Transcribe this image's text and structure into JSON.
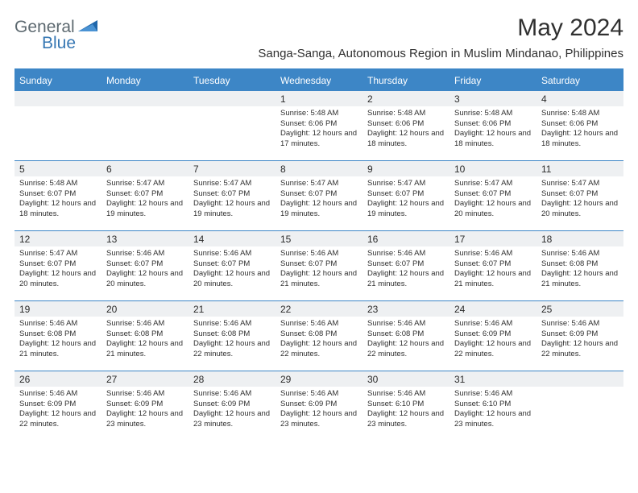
{
  "brand": {
    "word1": "General",
    "word2": "Blue"
  },
  "title": "May 2024",
  "subtitle": "Sanga-Sanga, Autonomous Region in Muslim Mindanao, Philippines",
  "colors": {
    "header_bg": "#3d86c6",
    "header_text": "#ffffff",
    "daynum_bg": "#eef0f2",
    "text": "#303030",
    "brand_gray": "#5d6970",
    "brand_blue": "#3677b3"
  },
  "day_names": [
    "Sunday",
    "Monday",
    "Tuesday",
    "Wednesday",
    "Thursday",
    "Friday",
    "Saturday"
  ],
  "weeks": [
    [
      null,
      null,
      null,
      {
        "n": "1",
        "sr": "5:48 AM",
        "ss": "6:06 PM",
        "dl": "12 hours and 17 minutes."
      },
      {
        "n": "2",
        "sr": "5:48 AM",
        "ss": "6:06 PM",
        "dl": "12 hours and 18 minutes."
      },
      {
        "n": "3",
        "sr": "5:48 AM",
        "ss": "6:06 PM",
        "dl": "12 hours and 18 minutes."
      },
      {
        "n": "4",
        "sr": "5:48 AM",
        "ss": "6:06 PM",
        "dl": "12 hours and 18 minutes."
      }
    ],
    [
      {
        "n": "5",
        "sr": "5:48 AM",
        "ss": "6:07 PM",
        "dl": "12 hours and 18 minutes."
      },
      {
        "n": "6",
        "sr": "5:47 AM",
        "ss": "6:07 PM",
        "dl": "12 hours and 19 minutes."
      },
      {
        "n": "7",
        "sr": "5:47 AM",
        "ss": "6:07 PM",
        "dl": "12 hours and 19 minutes."
      },
      {
        "n": "8",
        "sr": "5:47 AM",
        "ss": "6:07 PM",
        "dl": "12 hours and 19 minutes."
      },
      {
        "n": "9",
        "sr": "5:47 AM",
        "ss": "6:07 PM",
        "dl": "12 hours and 19 minutes."
      },
      {
        "n": "10",
        "sr": "5:47 AM",
        "ss": "6:07 PM",
        "dl": "12 hours and 20 minutes."
      },
      {
        "n": "11",
        "sr": "5:47 AM",
        "ss": "6:07 PM",
        "dl": "12 hours and 20 minutes."
      }
    ],
    [
      {
        "n": "12",
        "sr": "5:47 AM",
        "ss": "6:07 PM",
        "dl": "12 hours and 20 minutes."
      },
      {
        "n": "13",
        "sr": "5:46 AM",
        "ss": "6:07 PM",
        "dl": "12 hours and 20 minutes."
      },
      {
        "n": "14",
        "sr": "5:46 AM",
        "ss": "6:07 PM",
        "dl": "12 hours and 20 minutes."
      },
      {
        "n": "15",
        "sr": "5:46 AM",
        "ss": "6:07 PM",
        "dl": "12 hours and 21 minutes."
      },
      {
        "n": "16",
        "sr": "5:46 AM",
        "ss": "6:07 PM",
        "dl": "12 hours and 21 minutes."
      },
      {
        "n": "17",
        "sr": "5:46 AM",
        "ss": "6:07 PM",
        "dl": "12 hours and 21 minutes."
      },
      {
        "n": "18",
        "sr": "5:46 AM",
        "ss": "6:08 PM",
        "dl": "12 hours and 21 minutes."
      }
    ],
    [
      {
        "n": "19",
        "sr": "5:46 AM",
        "ss": "6:08 PM",
        "dl": "12 hours and 21 minutes."
      },
      {
        "n": "20",
        "sr": "5:46 AM",
        "ss": "6:08 PM",
        "dl": "12 hours and 21 minutes."
      },
      {
        "n": "21",
        "sr": "5:46 AM",
        "ss": "6:08 PM",
        "dl": "12 hours and 22 minutes."
      },
      {
        "n": "22",
        "sr": "5:46 AM",
        "ss": "6:08 PM",
        "dl": "12 hours and 22 minutes."
      },
      {
        "n": "23",
        "sr": "5:46 AM",
        "ss": "6:08 PM",
        "dl": "12 hours and 22 minutes."
      },
      {
        "n": "24",
        "sr": "5:46 AM",
        "ss": "6:09 PM",
        "dl": "12 hours and 22 minutes."
      },
      {
        "n": "25",
        "sr": "5:46 AM",
        "ss": "6:09 PM",
        "dl": "12 hours and 22 minutes."
      }
    ],
    [
      {
        "n": "26",
        "sr": "5:46 AM",
        "ss": "6:09 PM",
        "dl": "12 hours and 22 minutes."
      },
      {
        "n": "27",
        "sr": "5:46 AM",
        "ss": "6:09 PM",
        "dl": "12 hours and 23 minutes."
      },
      {
        "n": "28",
        "sr": "5:46 AM",
        "ss": "6:09 PM",
        "dl": "12 hours and 23 minutes."
      },
      {
        "n": "29",
        "sr": "5:46 AM",
        "ss": "6:09 PM",
        "dl": "12 hours and 23 minutes."
      },
      {
        "n": "30",
        "sr": "5:46 AM",
        "ss": "6:10 PM",
        "dl": "12 hours and 23 minutes."
      },
      {
        "n": "31",
        "sr": "5:46 AM",
        "ss": "6:10 PM",
        "dl": "12 hours and 23 minutes."
      },
      null
    ]
  ],
  "labels": {
    "sunrise": "Sunrise:",
    "sunset": "Sunset:",
    "daylight": "Daylight:"
  }
}
